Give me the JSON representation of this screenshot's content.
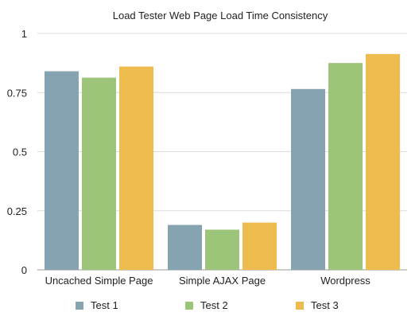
{
  "chart_data": {
    "type": "bar",
    "title": "Load Tester Web Page Load Time Consistency",
    "xlabel": "",
    "ylabel": "",
    "categories": [
      "Uncached Simple Page",
      "Simple AJAX Page",
      "Wordpress"
    ],
    "ylim": [
      0,
      1
    ],
    "yticks": [
      0,
      0.25,
      0.5,
      0.75,
      1
    ],
    "ytick_labels": [
      "0",
      "0.25",
      "0.5",
      "0.75",
      "1"
    ],
    "grid": true,
    "legend_position": "bottom",
    "series": [
      {
        "name": "Test 1",
        "color": "#86a3b2",
        "values": [
          0.84,
          0.19,
          0.765
        ]
      },
      {
        "name": "Test 2",
        "color": "#9dc57a",
        "values": [
          0.813,
          0.17,
          0.875
        ]
      },
      {
        "name": "Test 3",
        "color": "#eebc4e",
        "values": [
          0.86,
          0.2,
          0.913
        ]
      }
    ]
  }
}
